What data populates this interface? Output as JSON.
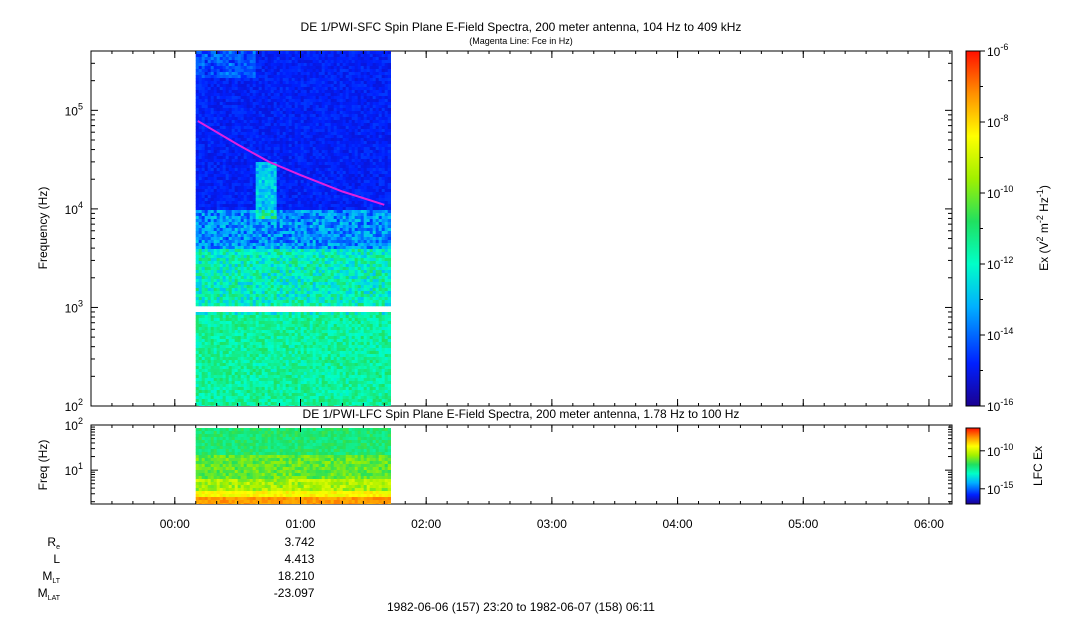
{
  "chart_data": [
    {
      "type": "heatmap",
      "title": "DE 1/PWI-SFC  Spin Plane E-Field Spectra, 200 meter antenna, 104 Hz to 409 kHz",
      "subtitle": "(Magenta Line: Fce in Hz)",
      "ylabel": "Frequency (Hz)",
      "yscale": "log",
      "ylim": [
        100,
        400000
      ],
      "y_ticks": [
        {
          "base": "10",
          "exp": "2",
          "value": 100
        },
        {
          "base": "10",
          "exp": "3",
          "value": 1000
        },
        {
          "base": "10",
          "exp": "4",
          "value": 10000
        },
        {
          "base": "10",
          "exp": "5",
          "value": 100000
        }
      ],
      "data_time_range": [
        "00:10",
        "01:42"
      ],
      "gap_hz": [
        900,
        1000
      ],
      "fce_line": {
        "color": "#e020e0",
        "points": [
          {
            "t": "00:11",
            "hz": 78000
          },
          {
            "t": "00:30",
            "hz": 45000
          },
          {
            "t": "00:45",
            "hz": 30000
          },
          {
            "t": "01:00",
            "hz": 22000
          },
          {
            "t": "01:20",
            "hz": 15000
          },
          {
            "t": "01:40",
            "hz": 11000
          }
        ]
      },
      "colorbar": {
        "label_parts": {
          "a": "Ex (V",
          "b": "2",
          "c": " m",
          "d": "-2",
          "e": " Hz",
          "f": "-1",
          "g": ")"
        },
        "scale": "log",
        "range": [
          1e-16,
          1e-06
        ],
        "ticks": [
          {
            "base": "10",
            "exp": "-6",
            "value": 1e-06
          },
          {
            "base": "10",
            "exp": "-8",
            "value": 1e-08
          },
          {
            "base": "10",
            "exp": "-10",
            "value": 1e-10
          },
          {
            "base": "10",
            "exp": "-12",
            "value": 1e-12
          },
          {
            "base": "10",
            "exp": "-14",
            "value": 1e-14
          },
          {
            "base": "10",
            "exp": "-16",
            "value": 1e-16
          }
        ]
      }
    },
    {
      "type": "heatmap",
      "title": "DE 1/PWI-LFC  Spin Plane E-Field Spectra, 200 meter antenna, 1.78 Hz to 100 Hz",
      "ylabel": "Freq (Hz)",
      "yscale": "log",
      "ylim": [
        1.78,
        100
      ],
      "y_ticks": [
        {
          "base": "10",
          "exp": "1",
          "value": 10
        },
        {
          "base": "10",
          "exp": "2",
          "value": 100
        }
      ],
      "data_time_range": [
        "00:10",
        "01:42"
      ],
      "colorbar": {
        "label": "LFC Ex",
        "scale": "log",
        "range": [
          1e-17,
          1e-07
        ],
        "ticks": [
          {
            "base": "10",
            "exp": "-10",
            "value": 1e-10
          },
          {
            "base": "10",
            "exp": "-15",
            "value": 1e-15
          }
        ]
      }
    }
  ],
  "time_axis": {
    "range": [
      "23:20",
      "06:11"
    ],
    "ticks": [
      "00:00",
      "01:00",
      "02:00",
      "03:00",
      "04:00",
      "05:00",
      "06:00"
    ]
  },
  "ephemeris": [
    {
      "label": "R",
      "sub": "e",
      "value": "3.742"
    },
    {
      "label": "L",
      "sub": "",
      "value": "4.413"
    },
    {
      "label": "M",
      "sub": "LT",
      "value": "18.210"
    },
    {
      "label": "M",
      "sub": "LAT",
      "value": "-23.097"
    }
  ],
  "time_range_label": "1982-06-06 (157) 23:20 to 1982-06-07 (158) 06:11"
}
